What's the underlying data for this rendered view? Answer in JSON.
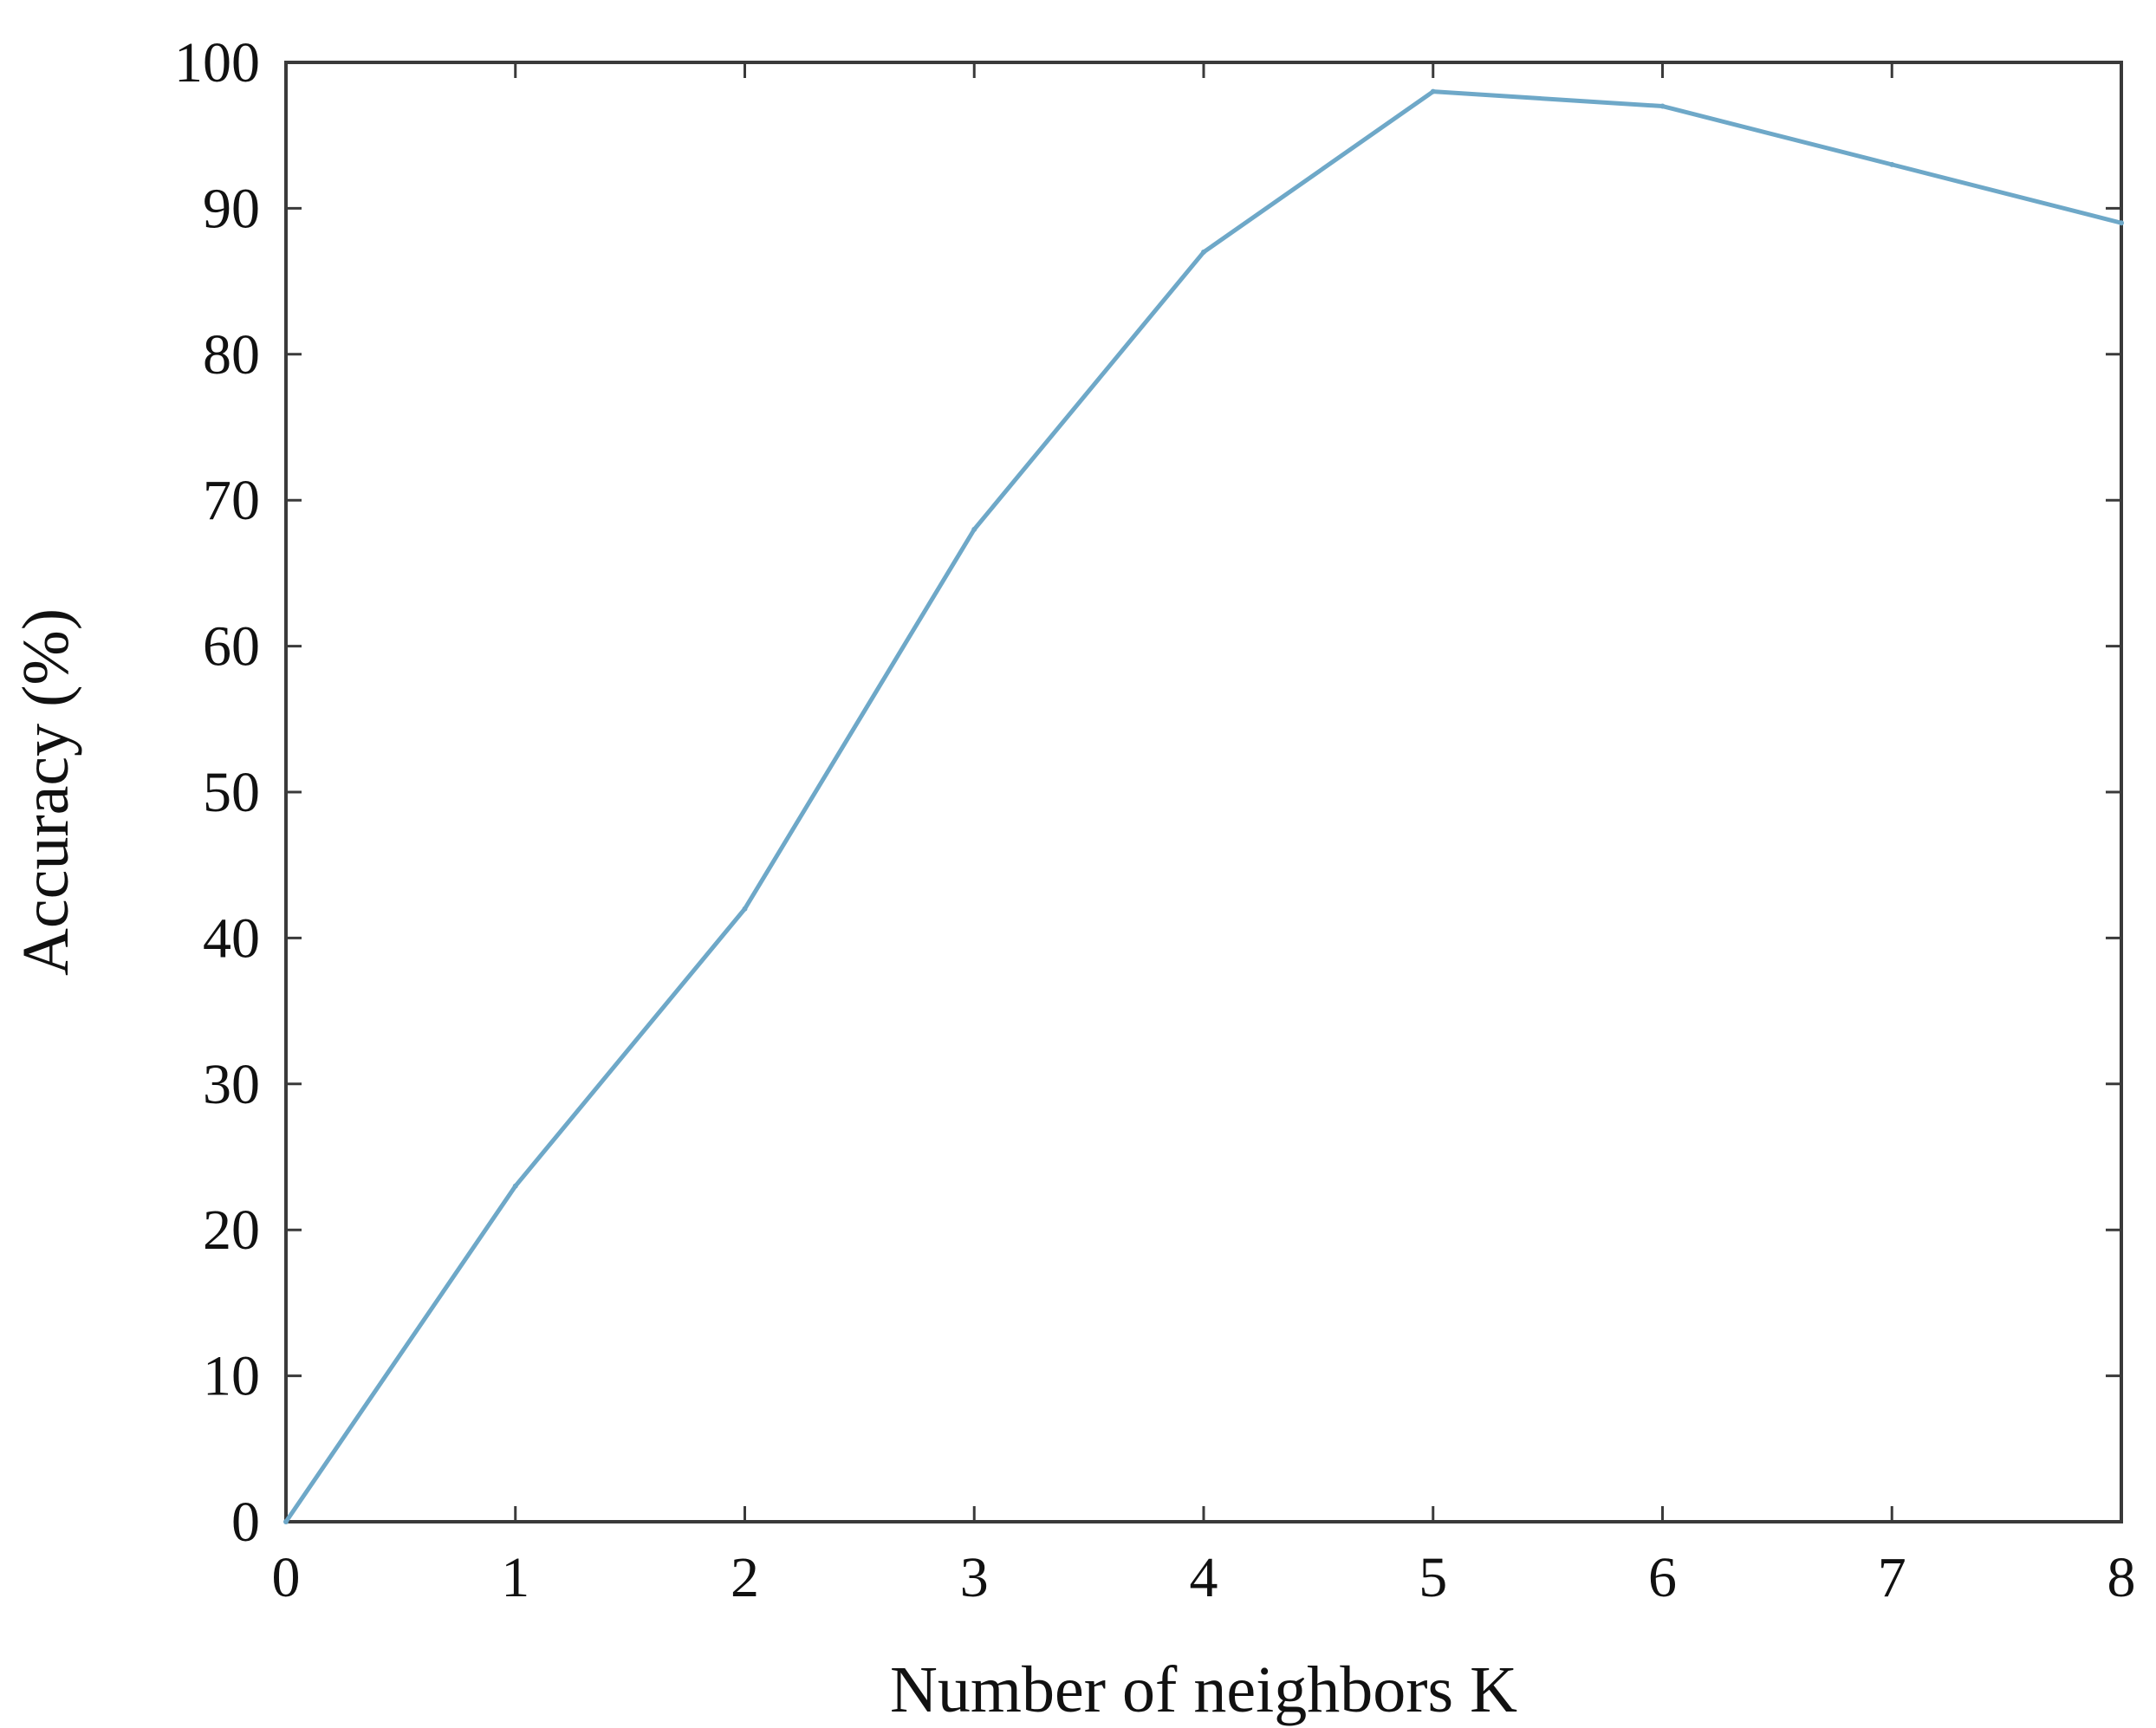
{
  "chart_data": {
    "type": "line",
    "title": "",
    "xlabel": "Number of neighbors K",
    "ylabel": "Accuracy (%)",
    "xlim": [
      0,
      8
    ],
    "ylim": [
      0,
      100
    ],
    "grid": false,
    "x_ticks": [
      "0",
      "1",
      "2",
      "3",
      "4",
      "5",
      "6",
      "7",
      "8"
    ],
    "y_ticks": [
      "0",
      "10",
      "20",
      "30",
      "40",
      "50",
      "60",
      "70",
      "80",
      "90",
      "100"
    ],
    "series": [
      {
        "color": "#6ea8c8",
        "x": [
          0,
          1,
          2,
          3,
          4,
          5,
          6,
          7,
          8
        ],
        "values": [
          0,
          23,
          42,
          68,
          87,
          98,
          97,
          93,
          89
        ]
      }
    ]
  }
}
